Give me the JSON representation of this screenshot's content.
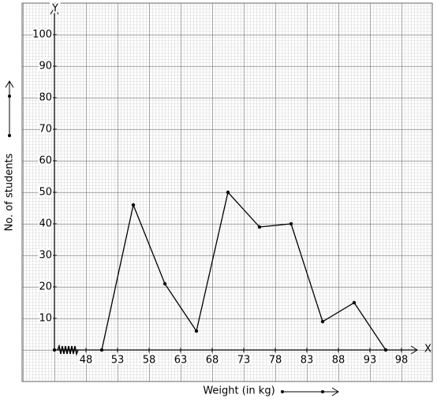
{
  "chart_data": {
    "type": "line",
    "x_label": "Weight (in kg)",
    "y_label": "No. of students",
    "x_axis_name": "X",
    "y_axis_name": "Y",
    "x": [
      50.5,
      55.5,
      60.5,
      65.5,
      70.5,
      75.5,
      80.5,
      85.5,
      90.5,
      95.5
    ],
    "series": [
      {
        "color": "#000000",
        "values": [
          0,
          46,
          21,
          6,
          50,
          39,
          40,
          9,
          15,
          0
        ]
      }
    ],
    "xlim": [
      43,
      100.5
    ],
    "ylim": [
      0,
      110
    ],
    "xticks": [
      48,
      53,
      58,
      63,
      68,
      73,
      78,
      83,
      88,
      93,
      98
    ],
    "yticks": [
      10,
      20,
      30,
      40,
      50,
      60,
      70,
      80,
      90,
      100
    ],
    "grid": true
  }
}
